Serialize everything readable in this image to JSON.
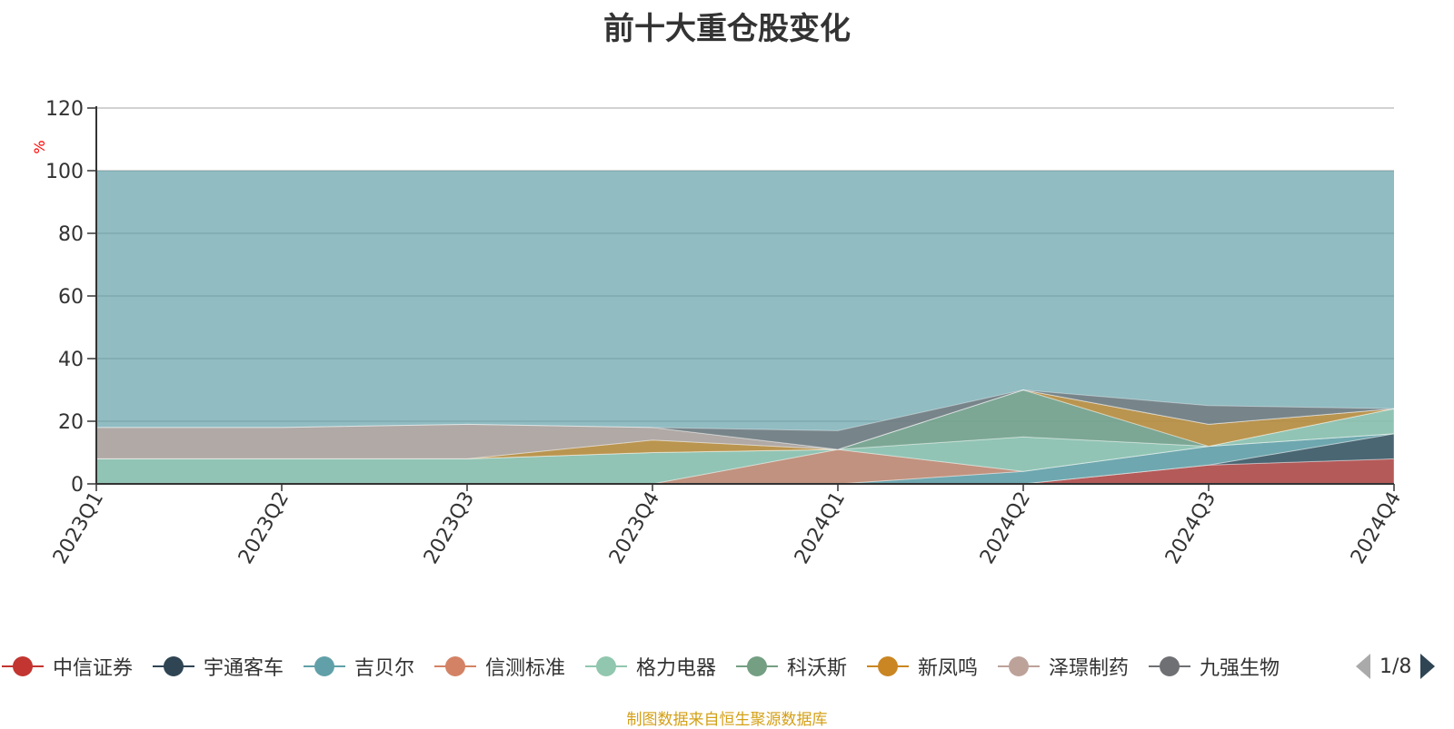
{
  "chart_data": {
    "type": "area",
    "title": "前十大重仓股变化",
    "ylabel": "%",
    "ylim": [
      0,
      120
    ],
    "yticks": [
      0,
      20,
      40,
      60,
      80,
      100,
      120
    ],
    "grid": true,
    "x": [
      "2023Q1",
      "2023Q2",
      "2023Q3",
      "2023Q4",
      "2024Q1",
      "2024Q2",
      "2024Q3",
      "2024Q4"
    ],
    "series": [
      {
        "name": "中信证券",
        "color": "#c23531",
        "values": [
          null,
          null,
          null,
          null,
          null,
          null,
          6,
          8
        ]
      },
      {
        "name": "宇通客车",
        "color": "#2f4554",
        "values": [
          null,
          null,
          null,
          null,
          null,
          null,
          null,
          8
        ]
      },
      {
        "name": "吉贝尔",
        "color": "#61a0a8",
        "values": [
          null,
          null,
          null,
          null,
          null,
          4,
          6,
          null
        ]
      },
      {
        "name": "信测标准",
        "color": "#d48265",
        "values": [
          null,
          null,
          null,
          null,
          11,
          null,
          null,
          null
        ]
      },
      {
        "name": "格力电器",
        "color": "#91c7ae",
        "values": [
          8,
          8,
          8,
          10,
          null,
          11,
          null,
          8
        ]
      },
      {
        "name": "科沃斯",
        "color": "#749f83",
        "values": [
          null,
          null,
          null,
          null,
          null,
          15,
          null,
          null
        ]
      },
      {
        "name": "新凤鸣",
        "color": "#ca8622",
        "values": [
          null,
          null,
          null,
          4,
          null,
          null,
          7,
          null
        ]
      },
      {
        "name": "泽璟制药",
        "color": "#bda29a",
        "values": [
          10,
          10,
          11,
          4,
          null,
          null,
          null,
          null
        ]
      },
      {
        "name": "九强生物",
        "color": "#6e7074",
        "values": [
          null,
          null,
          null,
          null,
          6,
          null,
          6,
          null
        ]
      }
    ]
  },
  "legend": {
    "items": [
      {
        "label": "中信证券",
        "color": "#c23531"
      },
      {
        "label": "宇通客车",
        "color": "#2f4554"
      },
      {
        "label": "吉贝尔",
        "color": "#61a0a8"
      },
      {
        "label": "信测标准",
        "color": "#d48265"
      },
      {
        "label": "格力电器",
        "color": "#91c7ae"
      },
      {
        "label": "科沃斯",
        "color": "#749f83"
      },
      {
        "label": "新凤鸣",
        "color": "#ca8622"
      },
      {
        "label": "泽璟制药",
        "color": "#bda29a"
      },
      {
        "label": "九强生物",
        "color": "#6e7074"
      }
    ],
    "page_text": "1/8"
  },
  "source_note": "制图数据来自恒生聚源数据库"
}
